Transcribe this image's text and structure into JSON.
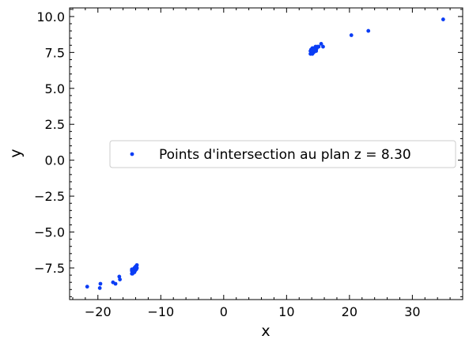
{
  "chart_data": {
    "type": "scatter",
    "title": "",
    "xlabel": "x",
    "ylabel": "y",
    "xlim": [
      -24.5,
      38
    ],
    "ylim": [
      -9.7,
      10.6
    ],
    "x_ticks": [
      -20,
      -10,
      0,
      10,
      20,
      30
    ],
    "x_tick_labels": [
      "−20",
      "−10",
      "0",
      "10",
      "20",
      "30"
    ],
    "y_ticks": [
      -7.5,
      -5.0,
      -2.5,
      0.0,
      2.5,
      5.0,
      7.5,
      10.0
    ],
    "y_tick_labels": [
      "−7.5",
      "−5.0",
      "−2.5",
      "0.0",
      "2.5",
      "5.0",
      "7.5",
      "10.0"
    ],
    "grid": false,
    "legend_position": "center-right",
    "color": "#0b3df5",
    "series": [
      {
        "name": "Points d'intersection au plan z = 8.30",
        "x": [
          -21.7,
          -19.7,
          -19.6,
          -17.6,
          -17.2,
          -16.6,
          -16.5,
          -14.6,
          -14.5,
          -14.4,
          -14.3,
          -14.2,
          -14.1,
          -14.0,
          -13.9,
          -13.8,
          -14.6,
          -14.4,
          -14.2,
          -14.0,
          -13.8,
          -14.5,
          -14.3,
          -14.1,
          -13.9,
          -14.6,
          -14.2,
          -13.9,
          13.8,
          13.9,
          14.0,
          14.1,
          14.2,
          14.3,
          14.4,
          14.5,
          14.6,
          14.7,
          14.8,
          14.9,
          13.9,
          14.1,
          14.3,
          14.5,
          14.7,
          14.0,
          14.2,
          14.4,
          14.6,
          13.8,
          14.1,
          14.4,
          15.1,
          15.5,
          15.8,
          20.3,
          23.0,
          34.9
        ],
        "y": [
          -8.8,
          -8.9,
          -8.6,
          -8.5,
          -8.6,
          -8.1,
          -8.3,
          -7.9,
          -7.8,
          -7.7,
          -7.6,
          -7.5,
          -7.5,
          -7.4,
          -7.4,
          -7.3,
          -7.7,
          -7.6,
          -7.7,
          -7.6,
          -7.5,
          -7.9,
          -7.8,
          -7.7,
          -7.6,
          -7.6,
          -7.8,
          -7.5,
          7.4,
          7.5,
          7.6,
          7.5,
          7.6,
          7.7,
          7.6,
          7.7,
          7.8,
          7.7,
          7.8,
          7.9,
          7.7,
          7.8,
          7.5,
          7.6,
          7.6,
          7.7,
          7.5,
          7.8,
          7.9,
          7.6,
          7.4,
          7.7,
          7.9,
          8.1,
          7.9,
          8.7,
          9.0,
          9.8
        ]
      }
    ]
  }
}
